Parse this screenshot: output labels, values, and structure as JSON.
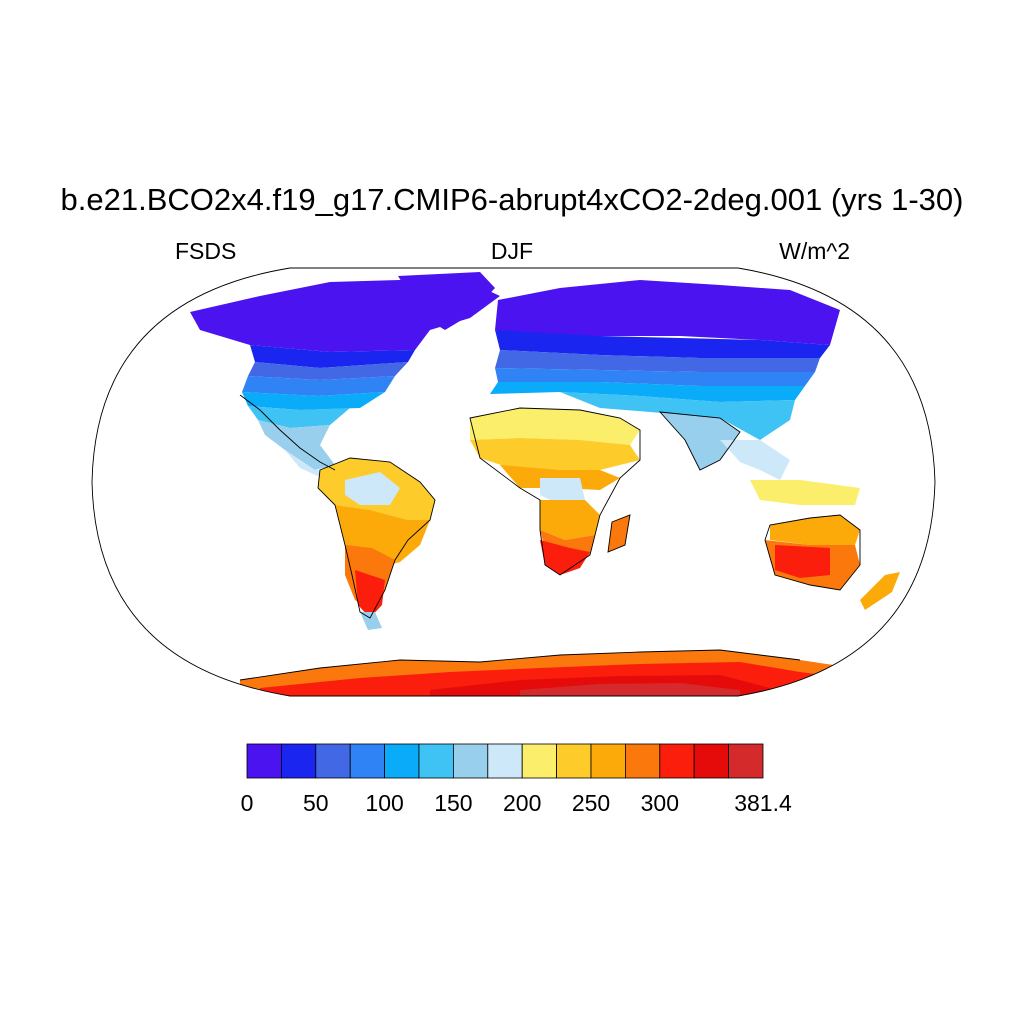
{
  "title": "b.e21.BCO2x4.f19_g17.CMIP6-abrupt4xCO2-2deg.001 (yrs 1-30)",
  "subtitle_left": "FSDS",
  "subtitle_center": "DJF",
  "subtitle_right": "W/m^2",
  "colorbar": {
    "colors": [
      "#4b13f0",
      "#1a26f0",
      "#4368e6",
      "#2f83f5",
      "#0aabf8",
      "#3fc3f5",
      "#98cfec",
      "#cde8f8",
      "#fbee6a",
      "#fdcb2a",
      "#fbaa09",
      "#fb780c",
      "#fb1e0c",
      "#e50b0b",
      "#d42a2c"
    ],
    "tick_labels": [
      "0",
      "50",
      "100",
      "150",
      "200",
      "250",
      "300",
      "381.4"
    ],
    "tick_positions": [
      0,
      2,
      4,
      6,
      8,
      10,
      12,
      15
    ]
  }
}
